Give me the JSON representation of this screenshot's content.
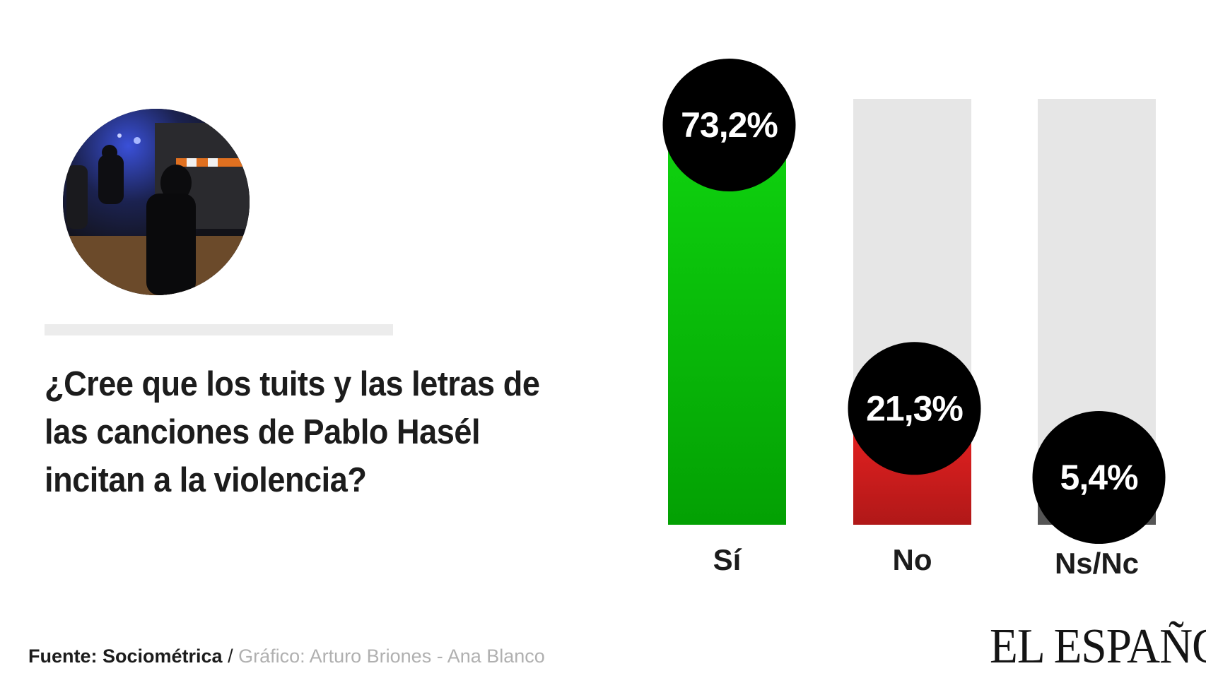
{
  "question": {
    "line1": "¿Cree que los tuits y las letras de",
    "line2": "las canciones de Pablo Hasél",
    "line3": "incitan a la violencia?"
  },
  "credits": {
    "source_label": "Fuente: Sociométrica",
    "separator": " / ",
    "graphic_label": "Gráfico: Arturo Briones - Ana Blanco"
  },
  "brand": {
    "logo_text": "EL ESPAÑOL"
  },
  "colors": {
    "si_top": "#0fd40f",
    "si_bottom": "#03a003",
    "no_top": "#ee2222",
    "no_bottom": "#b01818",
    "nsnc": "#555555",
    "track": "#e6e6e6",
    "bubble": "#000000",
    "bubble_text": "#ffffff"
  },
  "chart_data": {
    "type": "bar",
    "categories": [
      "Sí",
      "No",
      "Ns/Nc"
    ],
    "values": [
      73.2,
      21.3,
      5.4
    ],
    "value_labels": [
      "73,2%",
      "21,3%",
      "5,4%"
    ],
    "ylim": [
      0,
      73.2
    ],
    "title": "",
    "xlabel": "",
    "ylabel": "",
    "grid": false
  },
  "photo": {
    "icon": "protest-photo"
  }
}
